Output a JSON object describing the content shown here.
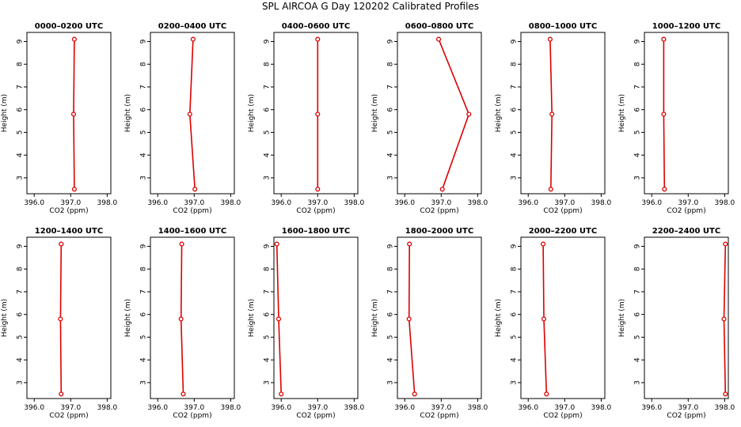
{
  "figure": {
    "title": "SPL AIRCOA G  Day 120202  Calibrated Profiles"
  },
  "chart_data": [
    {
      "type": "line",
      "title": "0000–0200 UTC",
      "xlabel": "CO2 (ppm)",
      "ylabel": "Height (m)",
      "xlim": [
        395.8,
        398.1
      ],
      "ylim": [
        2.3,
        9.4
      ],
      "xticks": [
        "396.0",
        "397.0",
        "398.0"
      ],
      "yticks": [
        "3",
        "4",
        "5",
        "6",
        "7",
        "8",
        "9"
      ],
      "series": [
        {
          "x": [
            397.1,
            397.08,
            397.1
          ],
          "y": [
            9.1,
            5.8,
            2.5
          ]
        }
      ]
    },
    {
      "type": "line",
      "title": "0200–0400 UTC",
      "xlabel": "CO2 (ppm)",
      "ylabel": "Height (m)",
      "xlim": [
        395.8,
        398.1
      ],
      "ylim": [
        2.3,
        9.4
      ],
      "xticks": [
        "396.0",
        "397.0",
        "398.0"
      ],
      "yticks": [
        "3",
        "4",
        "5",
        "6",
        "7",
        "8",
        "9"
      ],
      "series": [
        {
          "x": [
            396.97,
            396.88,
            397.02
          ],
          "y": [
            9.1,
            5.8,
            2.5
          ]
        }
      ]
    },
    {
      "type": "line",
      "title": "0400–0600 UTC",
      "xlabel": "CO2 (ppm)",
      "ylabel": "Height (m)",
      "xlim": [
        395.8,
        398.1
      ],
      "ylim": [
        2.3,
        9.4
      ],
      "xticks": [
        "396.0",
        "397.0",
        "398.0"
      ],
      "yticks": [
        "3",
        "4",
        "5",
        "6",
        "7",
        "8",
        "9"
      ],
      "series": [
        {
          "x": [
            397.0,
            397.0,
            397.0
          ],
          "y": [
            9.1,
            5.8,
            2.5
          ]
        }
      ]
    },
    {
      "type": "line",
      "title": "0600–0800 UTC",
      "xlabel": "CO2 (ppm)",
      "ylabel": "Height (m)",
      "xlim": [
        395.8,
        398.1
      ],
      "ylim": [
        2.3,
        9.4
      ],
      "xticks": [
        "396.0",
        "397.0",
        "398.0"
      ],
      "yticks": [
        "3",
        "4",
        "5",
        "6",
        "7",
        "8",
        "9"
      ],
      "series": [
        {
          "x": [
            396.93,
            397.76,
            397.03
          ],
          "y": [
            9.1,
            5.8,
            2.5
          ]
        }
      ]
    },
    {
      "type": "line",
      "title": "0800–1000 UTC",
      "xlabel": "CO2 (ppm)",
      "ylabel": "Height (m)",
      "xlim": [
        395.8,
        398.1
      ],
      "ylim": [
        2.3,
        9.4
      ],
      "xticks": [
        "396.0",
        "397.0",
        "398.0"
      ],
      "yticks": [
        "3",
        "4",
        "5",
        "6",
        "7",
        "8",
        "9"
      ],
      "series": [
        {
          "x": [
            396.6,
            396.65,
            396.62
          ],
          "y": [
            9.1,
            5.8,
            2.5
          ]
        }
      ]
    },
    {
      "type": "line",
      "title": "1000–1200 UTC",
      "xlabel": "CO2 (ppm)",
      "ylabel": "Height (m)",
      "xlim": [
        395.8,
        398.1
      ],
      "ylim": [
        2.3,
        9.4
      ],
      "xticks": [
        "396.0",
        "397.0",
        "398.0"
      ],
      "yticks": [
        "3",
        "4",
        "5",
        "6",
        "7",
        "8",
        "9"
      ],
      "series": [
        {
          "x": [
            396.33,
            396.33,
            396.35
          ],
          "y": [
            9.1,
            5.8,
            2.5
          ]
        }
      ]
    },
    {
      "type": "line",
      "title": "1200–1400 UTC",
      "xlabel": "CO2 (ppm)",
      "ylabel": "Height (m)",
      "xlim": [
        395.8,
        398.1
      ],
      "ylim": [
        2.3,
        9.4
      ],
      "xticks": [
        "396.0",
        "397.0",
        "398.0"
      ],
      "yticks": [
        "3",
        "4",
        "5",
        "6",
        "7",
        "8",
        "9"
      ],
      "series": [
        {
          "x": [
            396.74,
            396.72,
            396.74
          ],
          "y": [
            9.1,
            5.8,
            2.5
          ]
        }
      ]
    },
    {
      "type": "line",
      "title": "1400–1600 UTC",
      "xlabel": "CO2 (ppm)",
      "ylabel": "Height (m)",
      "xlim": [
        395.8,
        398.1
      ],
      "ylim": [
        2.3,
        9.4
      ],
      "xticks": [
        "396.0",
        "397.0",
        "398.0"
      ],
      "yticks": [
        "3",
        "4",
        "5",
        "6",
        "7",
        "8",
        "9"
      ],
      "series": [
        {
          "x": [
            396.66,
            396.64,
            396.7
          ],
          "y": [
            9.1,
            5.8,
            2.5
          ]
        }
      ]
    },
    {
      "type": "line",
      "title": "1600–1800 UTC",
      "xlabel": "CO2 (ppm)",
      "ylabel": "Height (m)",
      "xlim": [
        395.8,
        398.1
      ],
      "ylim": [
        2.3,
        9.4
      ],
      "xticks": [
        "396.0",
        "397.0",
        "398.0"
      ],
      "yticks": [
        "3",
        "4",
        "5",
        "6",
        "7",
        "8",
        "9"
      ],
      "series": [
        {
          "x": [
            395.88,
            395.93,
            396.0
          ],
          "y": [
            9.1,
            5.8,
            2.5
          ]
        }
      ]
    },
    {
      "type": "line",
      "title": "1800–2000 UTC",
      "xlabel": "CO2 (ppm)",
      "ylabel": "Height (m)",
      "xlim": [
        395.8,
        398.1
      ],
      "ylim": [
        2.3,
        9.4
      ],
      "xticks": [
        "396.0",
        "397.0",
        "398.0"
      ],
      "yticks": [
        "3",
        "4",
        "5",
        "6",
        "7",
        "8",
        "9"
      ],
      "series": [
        {
          "x": [
            396.13,
            396.12,
            396.27
          ],
          "y": [
            9.1,
            5.8,
            2.5
          ]
        }
      ]
    },
    {
      "type": "line",
      "title": "2000–2200 UTC",
      "xlabel": "CO2 (ppm)",
      "ylabel": "Height (m)",
      "xlim": [
        395.8,
        398.1
      ],
      "ylim": [
        2.3,
        9.4
      ],
      "xticks": [
        "396.0",
        "397.0",
        "398.0"
      ],
      "yticks": [
        "3",
        "4",
        "5",
        "6",
        "7",
        "8",
        "9"
      ],
      "series": [
        {
          "x": [
            396.41,
            396.43,
            396.5
          ],
          "y": [
            9.1,
            5.8,
            2.5
          ]
        }
      ]
    },
    {
      "type": "line",
      "title": "2200–2400 UTC",
      "xlabel": "CO2 (ppm)",
      "ylabel": "Height (m)",
      "xlim": [
        395.8,
        398.1
      ],
      "ylim": [
        2.3,
        9.4
      ],
      "xticks": [
        "396.0",
        "397.0",
        "398.0"
      ],
      "yticks": [
        "3",
        "4",
        "5",
        "6",
        "7",
        "8",
        "9"
      ],
      "series": [
        {
          "x": [
            398.02,
            397.98,
            398.02
          ],
          "y": [
            9.1,
            5.8,
            2.5
          ]
        }
      ]
    }
  ],
  "style": {
    "line_color": "#dd0000",
    "axis_color": "#000000",
    "background": "#ffffff"
  }
}
